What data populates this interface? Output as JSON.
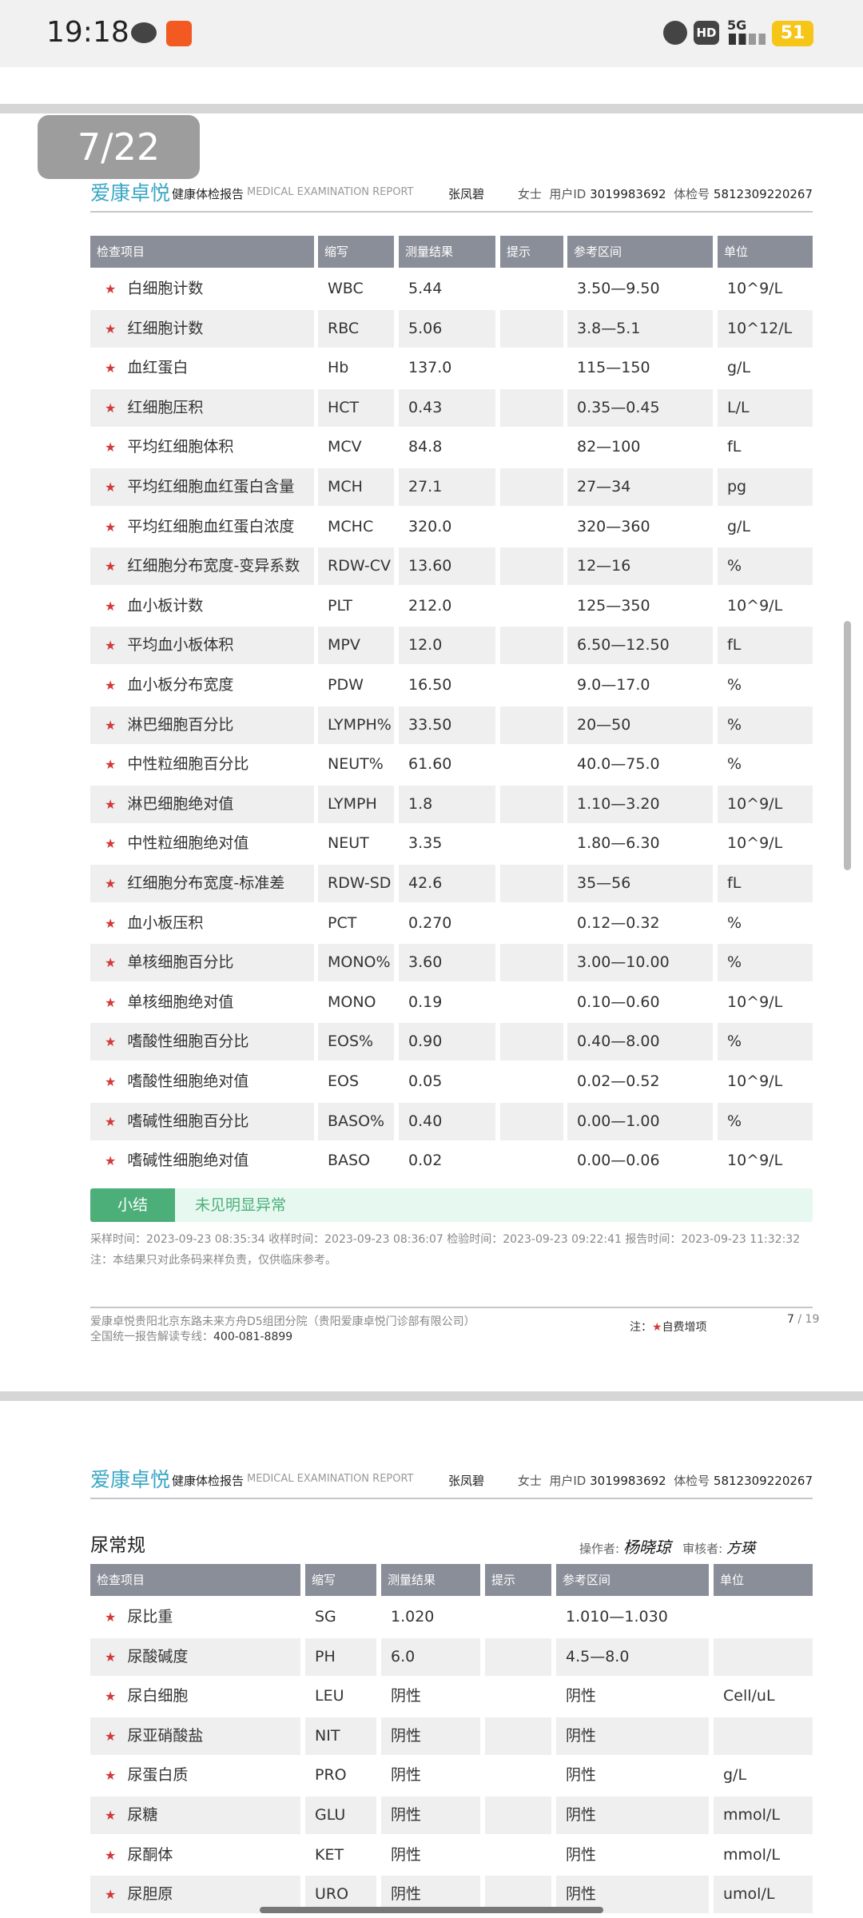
{
  "status_bar": {
    "time": "19:18",
    "battery": "51",
    "network": "5G",
    "hd": "HD"
  },
  "viewer": {
    "page_indicator": "7/22"
  },
  "report_header": {
    "logo": "爱康卓悦",
    "title": "健康体检报告",
    "title_en": "MEDICAL EXAMINATION REPORT",
    "name": "张凤碧",
    "gender": "女士",
    "user_id_label": "用户ID",
    "user_id": "3019983692",
    "exam_no_label": "体检号",
    "exam_no": "5812309220267"
  },
  "columns_page1": [
    "检查项目",
    "缩写",
    "测量结果",
    "提示",
    "参考区间",
    "单位"
  ],
  "blood_rows": [
    [
      "白细胞计数",
      "WBC",
      "5.44",
      "",
      "3.50—9.50",
      "10^9/L"
    ],
    [
      "红细胞计数",
      "RBC",
      "5.06",
      "",
      "3.8—5.1",
      "10^12/L"
    ],
    [
      "血红蛋白",
      "Hb",
      "137.0",
      "",
      "115—150",
      "g/L"
    ],
    [
      "红细胞压积",
      "HCT",
      "0.43",
      "",
      "0.35—0.45",
      "L/L"
    ],
    [
      "平均红细胞体积",
      "MCV",
      "84.8",
      "",
      "82—100",
      "fL"
    ],
    [
      "平均红细胞血红蛋白含量",
      "MCH",
      "27.1",
      "",
      "27—34",
      "pg"
    ],
    [
      "平均红细胞血红蛋白浓度",
      "MCHC",
      "320.0",
      "",
      "320—360",
      "g/L"
    ],
    [
      "红细胞分布宽度-变异系数",
      "RDW-CV",
      "13.60",
      "",
      "12—16",
      "%"
    ],
    [
      "血小板计数",
      "PLT",
      "212.0",
      "",
      "125—350",
      "10^9/L"
    ],
    [
      "平均血小板体积",
      "MPV",
      "12.0",
      "",
      "6.50—12.50",
      "fL"
    ],
    [
      "血小板分布宽度",
      "PDW",
      "16.50",
      "",
      "9.0—17.0",
      "%"
    ],
    [
      "淋巴细胞百分比",
      "LYMPH%",
      "33.50",
      "",
      "20—50",
      "%"
    ],
    [
      "中性粒细胞百分比",
      "NEUT%",
      "61.60",
      "",
      "40.0—75.0",
      "%"
    ],
    [
      "淋巴细胞绝对值",
      "LYMPH",
      "1.8",
      "",
      "1.10—3.20",
      "10^9/L"
    ],
    [
      "中性粒细胞绝对值",
      "NEUT",
      "3.35",
      "",
      "1.80—6.30",
      "10^9/L"
    ],
    [
      "红细胞分布宽度-标准差",
      "RDW-SD",
      "42.6",
      "",
      "35—56",
      "fL"
    ],
    [
      "血小板压积",
      "PCT",
      "0.270",
      "",
      "0.12—0.32",
      "%"
    ],
    [
      "单核细胞百分比",
      "MONO%",
      "3.60",
      "",
      "3.00—10.00",
      "%"
    ],
    [
      "单核细胞绝对值",
      "MONO",
      "0.19",
      "",
      "0.10—0.60",
      "10^9/L"
    ],
    [
      "嗜酸性细胞百分比",
      "EOS%",
      "0.90",
      "",
      "0.40—8.00",
      "%"
    ],
    [
      "嗜酸性细胞绝对值",
      "EOS",
      "0.05",
      "",
      "0.02—0.52",
      "10^9/L"
    ],
    [
      "嗜碱性细胞百分比",
      "BASO%",
      "0.40",
      "",
      "0.00—1.00",
      "%"
    ],
    [
      "嗜碱性细胞绝对值",
      "BASO",
      "0.02",
      "",
      "0.00—0.06",
      "10^9/L"
    ]
  ],
  "summary": {
    "label": "小结",
    "text": "未见明显异常"
  },
  "times": "采样时间：2023-09-23 08:35:34   收样时间：2023-09-23 08:36:07   检验时间：2023-09-23 09:22:41   报告时间：2023-09-23 11:32:32",
  "note": "注：本结果只对此条码来样负责，仅供临床参考。",
  "footer": {
    "address": "爱康卓悦贵阳北京东路未来方舟D5组团分院（贵阳爱康卓悦门诊部有限公司）",
    "hotline_label": "全国统一报告解读专线：",
    "hotline": "400-081-8899",
    "legend_label": "注：",
    "legend_text": "自费增项",
    "page": "7",
    "total": "/ 19"
  },
  "urine": {
    "title": "尿常规",
    "operator_label": "操作者:",
    "operator_sig": "杨晓琼",
    "reviewer_label": "审核者:",
    "reviewer_sig": "方瑛",
    "columns": [
      "检查项目",
      "缩写",
      "测量结果",
      "提示",
      "参考区间",
      "单位"
    ],
    "rows": [
      [
        "尿比重",
        "SG",
        "1.020",
        "",
        "1.010—1.030",
        ""
      ],
      [
        "尿酸碱度",
        "PH",
        "6.0",
        "",
        "4.5—8.0",
        ""
      ],
      [
        "尿白细胞",
        "LEU",
        "阴性",
        "",
        "阴性",
        "Cell/uL"
      ],
      [
        "尿亚硝酸盐",
        "NIT",
        "阴性",
        "",
        "阴性",
        ""
      ],
      [
        "尿蛋白质",
        "PRO",
        "阴性",
        "",
        "阴性",
        "g/L"
      ],
      [
        "尿糖",
        "GLU",
        "阴性",
        "",
        "阴性",
        "mmol/L"
      ],
      [
        "尿酮体",
        "KET",
        "阴性",
        "",
        "阴性",
        "mmol/L"
      ],
      [
        "尿胆原",
        "URO",
        "阴性",
        "",
        "阴性",
        "umol/L"
      ]
    ]
  },
  "colors": {
    "accent": "#3aa7c4",
    "header_bg": "#8a8e98",
    "summary_green": "#4caf7a",
    "star": "#d23a3a",
    "battery": "#f5c518"
  }
}
